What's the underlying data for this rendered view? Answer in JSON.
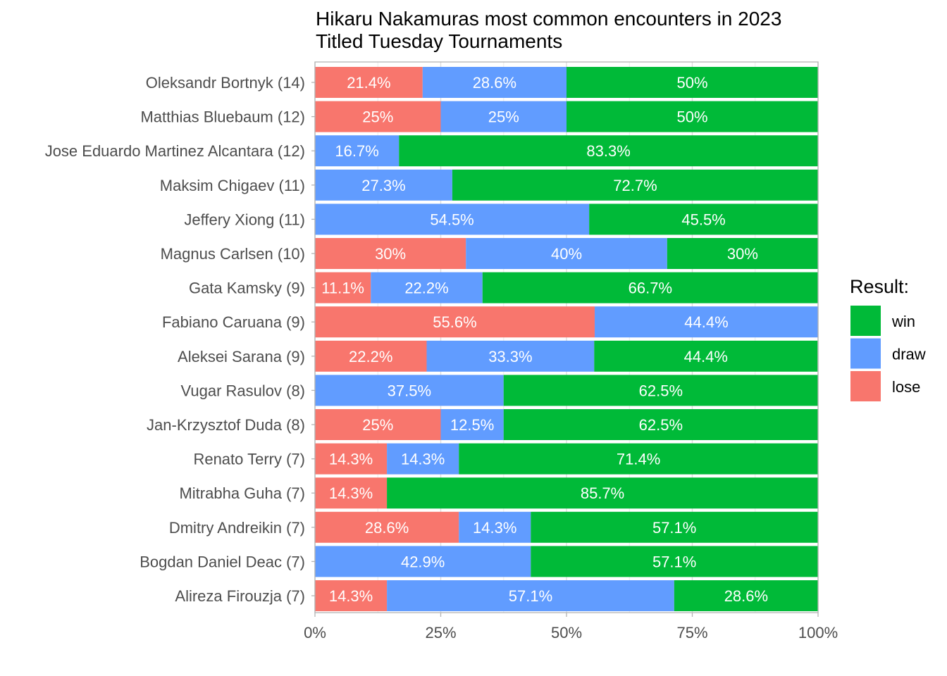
{
  "chart_data": {
    "type": "bar",
    "orientation": "horizontal",
    "stacked": "percent",
    "title": "Hikaru Nakamuras most common encounters in 2023\nTitled Tuesday Tournaments",
    "title_lines": [
      "Hikaru Nakamuras most common encounters in 2023",
      "Titled Tuesday Tournaments"
    ],
    "categories": [
      "Oleksandr Bortnyk (14)",
      "Matthias Bluebaum (12)",
      "Jose Eduardo Martinez Alcantara (12)",
      "Maksim Chigaev (11)",
      "Jeffery Xiong (11)",
      "Magnus Carlsen (10)",
      "Gata Kamsky (9)",
      "Fabiano Caruana (9)",
      "Aleksei Sarana (9)",
      "Vugar Rasulov (8)",
      "Jan-Krzysztof Duda (8)",
      "Renato Terry (7)",
      "Mitrabha Guha (7)",
      "Dmitry Andreikin (7)",
      "Bogdan Daniel Deac (7)",
      "Alireza Firouzja (7)"
    ],
    "series": [
      {
        "name": "lose",
        "color": "#F8766D",
        "values": [
          21.4,
          25,
          0,
          0,
          0,
          30,
          11.1,
          55.6,
          22.2,
          0,
          25,
          14.3,
          14.3,
          28.6,
          0,
          14.3
        ],
        "labels": [
          "21.4%",
          "25%",
          "",
          "",
          "",
          "30%",
          "11.1%",
          "55.6%",
          "22.2%",
          "",
          "25%",
          "14.3%",
          "14.3%",
          "28.6%",
          "",
          "14.3%"
        ]
      },
      {
        "name": "draw",
        "color": "#619CFF",
        "values": [
          28.6,
          25,
          16.7,
          27.3,
          54.5,
          40,
          22.2,
          44.4,
          33.3,
          37.5,
          12.5,
          14.3,
          0,
          14.3,
          42.9,
          57.1
        ],
        "labels": [
          "28.6%",
          "25%",
          "16.7%",
          "27.3%",
          "54.5%",
          "40%",
          "22.2%",
          "44.4%",
          "33.3%",
          "37.5%",
          "12.5%",
          "14.3%",
          "",
          "14.3%",
          "42.9%",
          "57.1%"
        ]
      },
      {
        "name": "win",
        "color": "#00BA38",
        "values": [
          50,
          50,
          83.3,
          72.7,
          45.5,
          30,
          66.7,
          0,
          44.4,
          62.5,
          62.5,
          71.4,
          85.7,
          57.1,
          57.1,
          28.6
        ],
        "labels": [
          "50%",
          "50%",
          "83.3%",
          "72.7%",
          "45.5%",
          "30%",
          "66.7%",
          "",
          "44.4%",
          "62.5%",
          "62.5%",
          "71.4%",
          "85.7%",
          "57.1%",
          "57.1%",
          "28.6%"
        ]
      }
    ],
    "xlim": [
      0,
      100
    ],
    "xticks": [
      0,
      25,
      50,
      75,
      100
    ],
    "xtick_labels": [
      "0%",
      "25%",
      "50%",
      "75%",
      "100%"
    ],
    "xlabel": "",
    "ylabel": "",
    "grid": true,
    "legend": {
      "title": "Result:",
      "placement": "right",
      "entries": [
        {
          "name": "win",
          "color": "#00BA38"
        },
        {
          "name": "draw",
          "color": "#619CFF"
        },
        {
          "name": "lose",
          "color": "#F8766D"
        }
      ]
    }
  }
}
